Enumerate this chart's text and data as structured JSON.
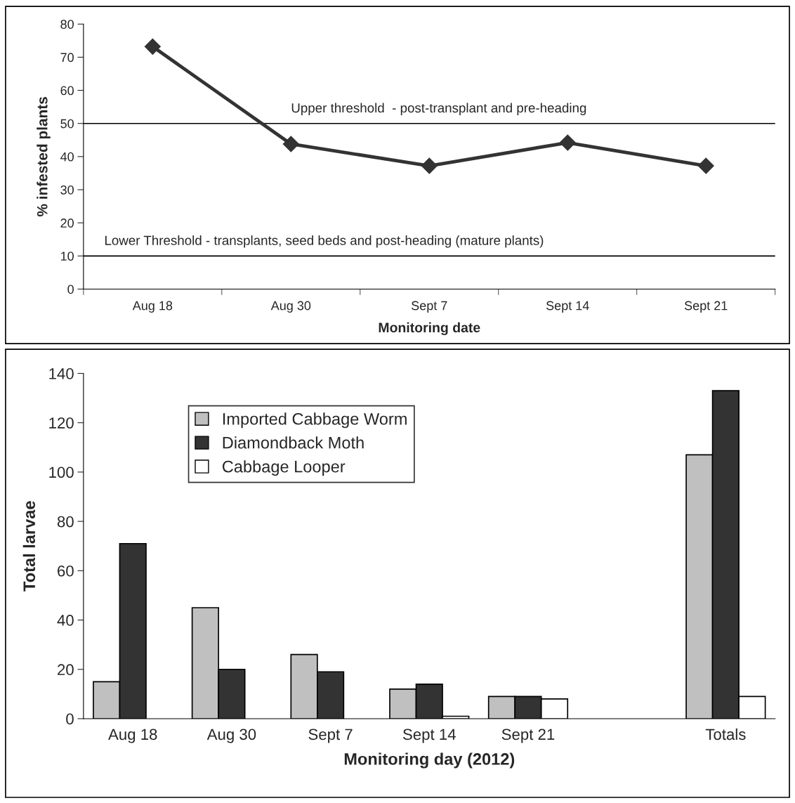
{
  "chart_data": [
    {
      "type": "line",
      "xlabel": "Monitoring date",
      "ylabel": "% infested plants",
      "categories": [
        "Aug 18",
        "Aug 30",
        "Sept 7",
        "Sept 14",
        "Sept 21"
      ],
      "series": [
        {
          "color": "#333333",
          "values": [
            73.2,
            43.8,
            37.2,
            44.2,
            37.2
          ]
        }
      ],
      "marker": "diamond",
      "line_style": "solid",
      "ylim": [
        0,
        80
      ],
      "yticks": [
        0,
        10,
        20,
        30,
        40,
        50,
        60,
        70,
        80
      ],
      "grid": false,
      "legend": false,
      "ref_lines": [
        {
          "axis": "y",
          "value": 50,
          "label": "Upper threshold  - post-transplant and pre-heading",
          "color": "#000000"
        },
        {
          "axis": "y",
          "value": 10,
          "label": "Lower Threshold - transplants, seed beds and post-heading (mature plants)",
          "color": "#000000"
        }
      ]
    },
    {
      "type": "bar",
      "xlabel": "Monitoring day (2012)",
      "ylabel": "Total larvae",
      "categories": [
        "Aug 18",
        "Aug 30",
        "Sept 7",
        "Sept 14",
        "Sept 21",
        null,
        "Totals"
      ],
      "series": [
        {
          "name": "Imported Cabbage Worm",
          "color": "#c0c0c0",
          "values": [
            15,
            45,
            26,
            12,
            9,
            null,
            107
          ]
        },
        {
          "name": "Diamondback Moth",
          "color": "#333333",
          "values": [
            71,
            20,
            19,
            14,
            9,
            null,
            133
          ]
        },
        {
          "name": "Cabbage Looper",
          "color": "#ffffff",
          "values": [
            null,
            null,
            null,
            1,
            8,
            null,
            9
          ]
        }
      ],
      "ylim": [
        0,
        140
      ],
      "yticks": [
        0,
        20,
        40,
        60,
        80,
        100,
        120,
        140
      ],
      "grid": false,
      "legend": "top left"
    }
  ]
}
